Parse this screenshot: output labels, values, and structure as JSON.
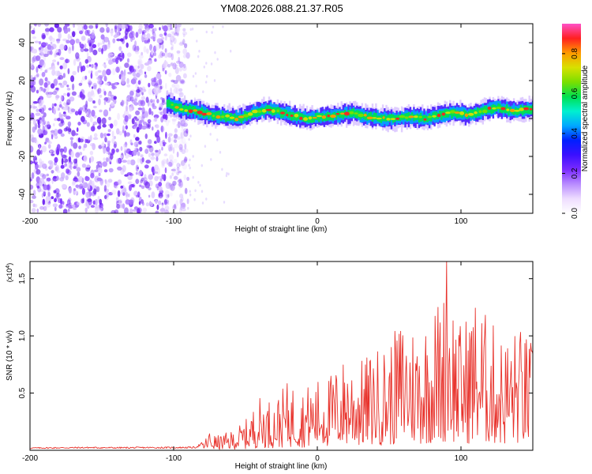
{
  "figure_title": "YM08.2026.088.21.37.R05",
  "colors": {
    "snr_line": "#e8322b",
    "axis": "#000000",
    "colormap": [
      "#ffffff",
      "#eeddff",
      "#b98cff",
      "#7a2bff",
      "#3b10ff",
      "#0020ff",
      "#00a8ff",
      "#00f0d0",
      "#00e050",
      "#7adf00",
      "#d8e000",
      "#ff9a00",
      "#ff2020",
      "#ff50c8"
    ]
  },
  "chart_data": [
    {
      "type": "heatmap",
      "title": "",
      "xlabel": "Height of straight line (km)",
      "ylabel": "Frequency (Hz)",
      "xlim": [
        -200,
        150
      ],
      "ylim": [
        -50,
        50
      ],
      "xticks": [
        -200,
        -100,
        0,
        100
      ],
      "xtick_labels": [
        "-200",
        "-100",
        "0",
        "100"
      ],
      "yticks": [
        -40,
        -20,
        0,
        20,
        40
      ],
      "ytick_labels": [
        "-40",
        "-20",
        "0",
        "20",
        "40"
      ],
      "noise_region_x": [
        -200,
        -90
      ],
      "ridge": {
        "x": [
          -105,
          -95,
          -85,
          -75,
          -65,
          -55,
          -45,
          -35,
          -25,
          -15,
          -5,
          5,
          15,
          25,
          35,
          45,
          55,
          65,
          75,
          85,
          95,
          105,
          115,
          125,
          135,
          150
        ],
        "frequency": [
          8,
          5,
          4,
          2,
          1,
          0,
          3,
          5,
          3,
          1,
          0,
          1,
          2,
          3,
          1,
          0,
          0,
          1,
          0,
          2,
          3,
          2,
          4,
          6,
          4,
          5
        ]
      },
      "colorbar": {
        "label": "Normalized spectral amplitude",
        "range": [
          0.0,
          0.95
        ],
        "ticks": [
          0.0,
          0.2,
          0.4,
          0.6,
          0.8
        ],
        "tick_labels": [
          "0.0",
          "0.2",
          "0.4",
          "0.6",
          "0.8"
        ]
      }
    },
    {
      "type": "line",
      "title": "",
      "xlabel": "Height of straight line (km)",
      "ylabel": "SNR (10 * v/v)",
      "y_multiplier_label": "(x10",
      "y_multiplier_exponent": "4",
      "y_multiplier_close": ")",
      "xlim": [
        -200,
        150
      ],
      "ylim": [
        0,
        16500
      ],
      "xticks": [
        -200,
        -100,
        0,
        100
      ],
      "xtick_labels": [
        "-200",
        "-100",
        "0",
        "100"
      ],
      "yticks": [
        5000,
        10000,
        15000
      ],
      "ytick_labels": [
        "0.5",
        "1.0",
        "1.5"
      ],
      "series": [
        {
          "name": "SNR",
          "envelope_x": [
            -200,
            -180,
            -160,
            -140,
            -120,
            -100,
            -85,
            -78,
            -76,
            -70,
            -60,
            -50,
            -40,
            -30,
            -20,
            -10,
            0,
            10,
            20,
            30,
            40,
            50,
            60,
            70,
            80,
            88,
            90,
            95,
            100,
            110,
            120,
            130,
            140,
            150
          ],
          "envelope_y": [
            250,
            280,
            300,
            280,
            300,
            300,
            320,
            900,
            1700,
            1200,
            1600,
            2500,
            4500,
            4200,
            5800,
            5200,
            6000,
            6500,
            8000,
            7500,
            8500,
            9000,
            11500,
            10500,
            12000,
            13500,
            16500,
            12500,
            10500,
            13000,
            11000,
            9500,
            10500,
            9000
          ]
        }
      ]
    }
  ]
}
